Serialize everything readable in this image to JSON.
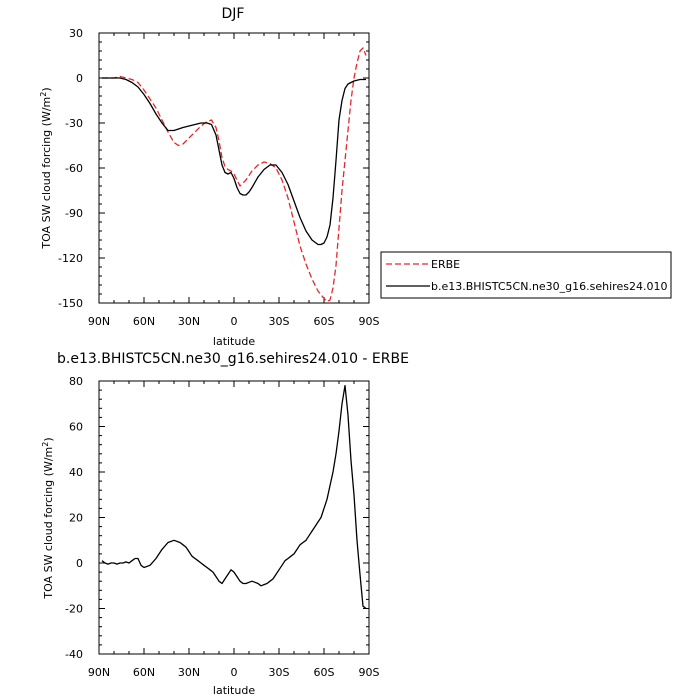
{
  "chart_data": [
    {
      "type": "line",
      "title": "DJF",
      "xlabel": "latitude",
      "ylabel_main": "TOA SW cloud forcing (W/m",
      "ylabel_sup": "2",
      "ylabel_close": ")",
      "xlim": [
        90,
        -90
      ],
      "ylim": [
        -150,
        30
      ],
      "x_ticks": [
        90,
        60,
        30,
        0,
        -30,
        -60,
        -90
      ],
      "x_tick_labels": [
        "90N",
        "60N",
        "30N",
        "0",
        "30S",
        "60S",
        "90S"
      ],
      "y_ticks": [
        30,
        0,
        -30,
        -60,
        -90,
        -120,
        -150
      ],
      "y_tick_labels": [
        "30",
        "0",
        "-30",
        "-60",
        "-90",
        "-120",
        "-150"
      ],
      "legend_position": "right",
      "series": [
        {
          "name": "ERBE",
          "color": "#e8262a",
          "dash": "dashed",
          "x": [
            88,
            84,
            80,
            76,
            72,
            68,
            64,
            60,
            56,
            52,
            48,
            44,
            40,
            37,
            34,
            30,
            26,
            22,
            18,
            15,
            12,
            10,
            8,
            6,
            4,
            2,
            0,
            -2,
            -4,
            -8,
            -12,
            -16,
            -20,
            -24,
            -28,
            -32,
            -36,
            -40,
            -44,
            -48,
            -52,
            -56,
            -60,
            -62,
            -64,
            -66,
            -68,
            -70,
            -72,
            -74,
            -76,
            -78,
            -80,
            -82,
            -84,
            -86,
            -88
          ],
          "y": [
            0,
            0,
            0,
            1,
            0,
            -1,
            -3,
            -8,
            -14,
            -20,
            -28,
            -36,
            -43,
            -45,
            -44,
            -40,
            -36,
            -32,
            -29,
            -28,
            -33,
            -42,
            -53,
            -59,
            -61,
            -62,
            -64,
            -68,
            -72,
            -68,
            -62,
            -58,
            -56,
            -57,
            -60,
            -68,
            -80,
            -96,
            -112,
            -124,
            -134,
            -142,
            -147,
            -149,
            -148,
            -140,
            -125,
            -100,
            -75,
            -55,
            -35,
            -15,
            0,
            10,
            18,
            20,
            15
          ]
        },
        {
          "name": "b.e13.BHISTC5CN.ne30_g16.sehires24.010",
          "color": "#000000",
          "dash": "solid",
          "x": [
            88,
            84,
            80,
            76,
            72,
            68,
            64,
            60,
            56,
            52,
            48,
            44,
            40,
            37,
            34,
            30,
            26,
            22,
            18,
            15,
            12,
            10,
            8,
            6,
            4,
            2,
            0,
            -2,
            -4,
            -6,
            -8,
            -10,
            -12,
            -16,
            -20,
            -24,
            -28,
            -32,
            -36,
            -40,
            -44,
            -48,
            -52,
            -56,
            -58,
            -60,
            -62,
            -64,
            -66,
            -68,
            -70,
            -72,
            -74,
            -76,
            -80,
            -84,
            -88
          ],
          "y": [
            0,
            0,
            0,
            0,
            -1,
            -3,
            -6,
            -11,
            -17,
            -24,
            -30,
            -35,
            -35,
            -34,
            -33,
            -32,
            -31,
            -30,
            -30,
            -31,
            -38,
            -48,
            -58,
            -63,
            -64,
            -63,
            -67,
            -73,
            -77,
            -78,
            -78,
            -76,
            -73,
            -66,
            -61,
            -58,
            -58,
            -63,
            -71,
            -82,
            -93,
            -102,
            -108,
            -111,
            -111,
            -110,
            -106,
            -98,
            -80,
            -55,
            -28,
            -15,
            -7,
            -4,
            -2,
            -1,
            -1
          ]
        }
      ]
    },
    {
      "type": "line",
      "title": "b.e13.BHISTC5CN.ne30_g16.sehires24.010 - ERBE",
      "xlabel": "latitude",
      "ylabel_main": "TOA SW cloud forcing (W/m",
      "ylabel_sup": "2",
      "ylabel_close": ")",
      "xlim": [
        90,
        -90
      ],
      "ylim": [
        -40,
        80
      ],
      "x_ticks": [
        90,
        60,
        30,
        0,
        -30,
        -60,
        -90
      ],
      "x_tick_labels": [
        "90N",
        "60N",
        "30N",
        "0",
        "30S",
        "60S",
        "90S"
      ],
      "y_ticks": [
        80,
        60,
        40,
        20,
        0,
        -20,
        -40
      ],
      "y_tick_labels": [
        "80",
        "60",
        "40",
        "20",
        "0",
        "-20",
        "-40"
      ],
      "series": [
        {
          "name": "",
          "color": "#000000",
          "dash": "solid",
          "x": [
            88,
            86,
            84,
            82,
            80,
            78,
            76,
            74,
            72,
            70,
            68,
            66,
            64,
            62,
            60,
            56,
            52,
            48,
            44,
            40,
            36,
            34,
            32,
            30,
            28,
            26,
            24,
            22,
            20,
            18,
            16,
            14,
            12,
            10,
            8,
            6,
            4,
            2,
            0,
            -2,
            -4,
            -6,
            -8,
            -10,
            -12,
            -14,
            -16,
            -18,
            -20,
            -22,
            -24,
            -26,
            -28,
            -30,
            -32,
            -34,
            -36,
            -38,
            -40,
            -42,
            -44,
            -46,
            -48,
            -50,
            -52,
            -54,
            -56,
            -58,
            -60,
            -62,
            -64,
            -66,
            -68,
            -70,
            -72,
            -74,
            -76,
            -78,
            -80,
            -82,
            -84,
            -86,
            -88
          ],
          "y": [
            1,
            0,
            -0.5,
            0,
            0,
            -0.5,
            0,
            0,
            0.5,
            0,
            1,
            2,
            2,
            -1,
            -2,
            -1,
            2,
            6,
            9,
            10,
            9,
            8,
            7,
            5,
            3,
            2,
            1,
            0,
            -1,
            -2,
            -3,
            -4,
            -6,
            -8,
            -9,
            -7,
            -5,
            -3,
            -4,
            -6,
            -8,
            -9,
            -9,
            -8.5,
            -8,
            -8.5,
            -9,
            -10,
            -9.5,
            -9,
            -8,
            -7,
            -5,
            -3,
            -1,
            1,
            2,
            3,
            4,
            6,
            8,
            9,
            10,
            12,
            14,
            16,
            18,
            20,
            24,
            28,
            34,
            40,
            48,
            58,
            70,
            78,
            65,
            45,
            30,
            10,
            -5,
            -19,
            -20
          ]
        }
      ]
    }
  ]
}
